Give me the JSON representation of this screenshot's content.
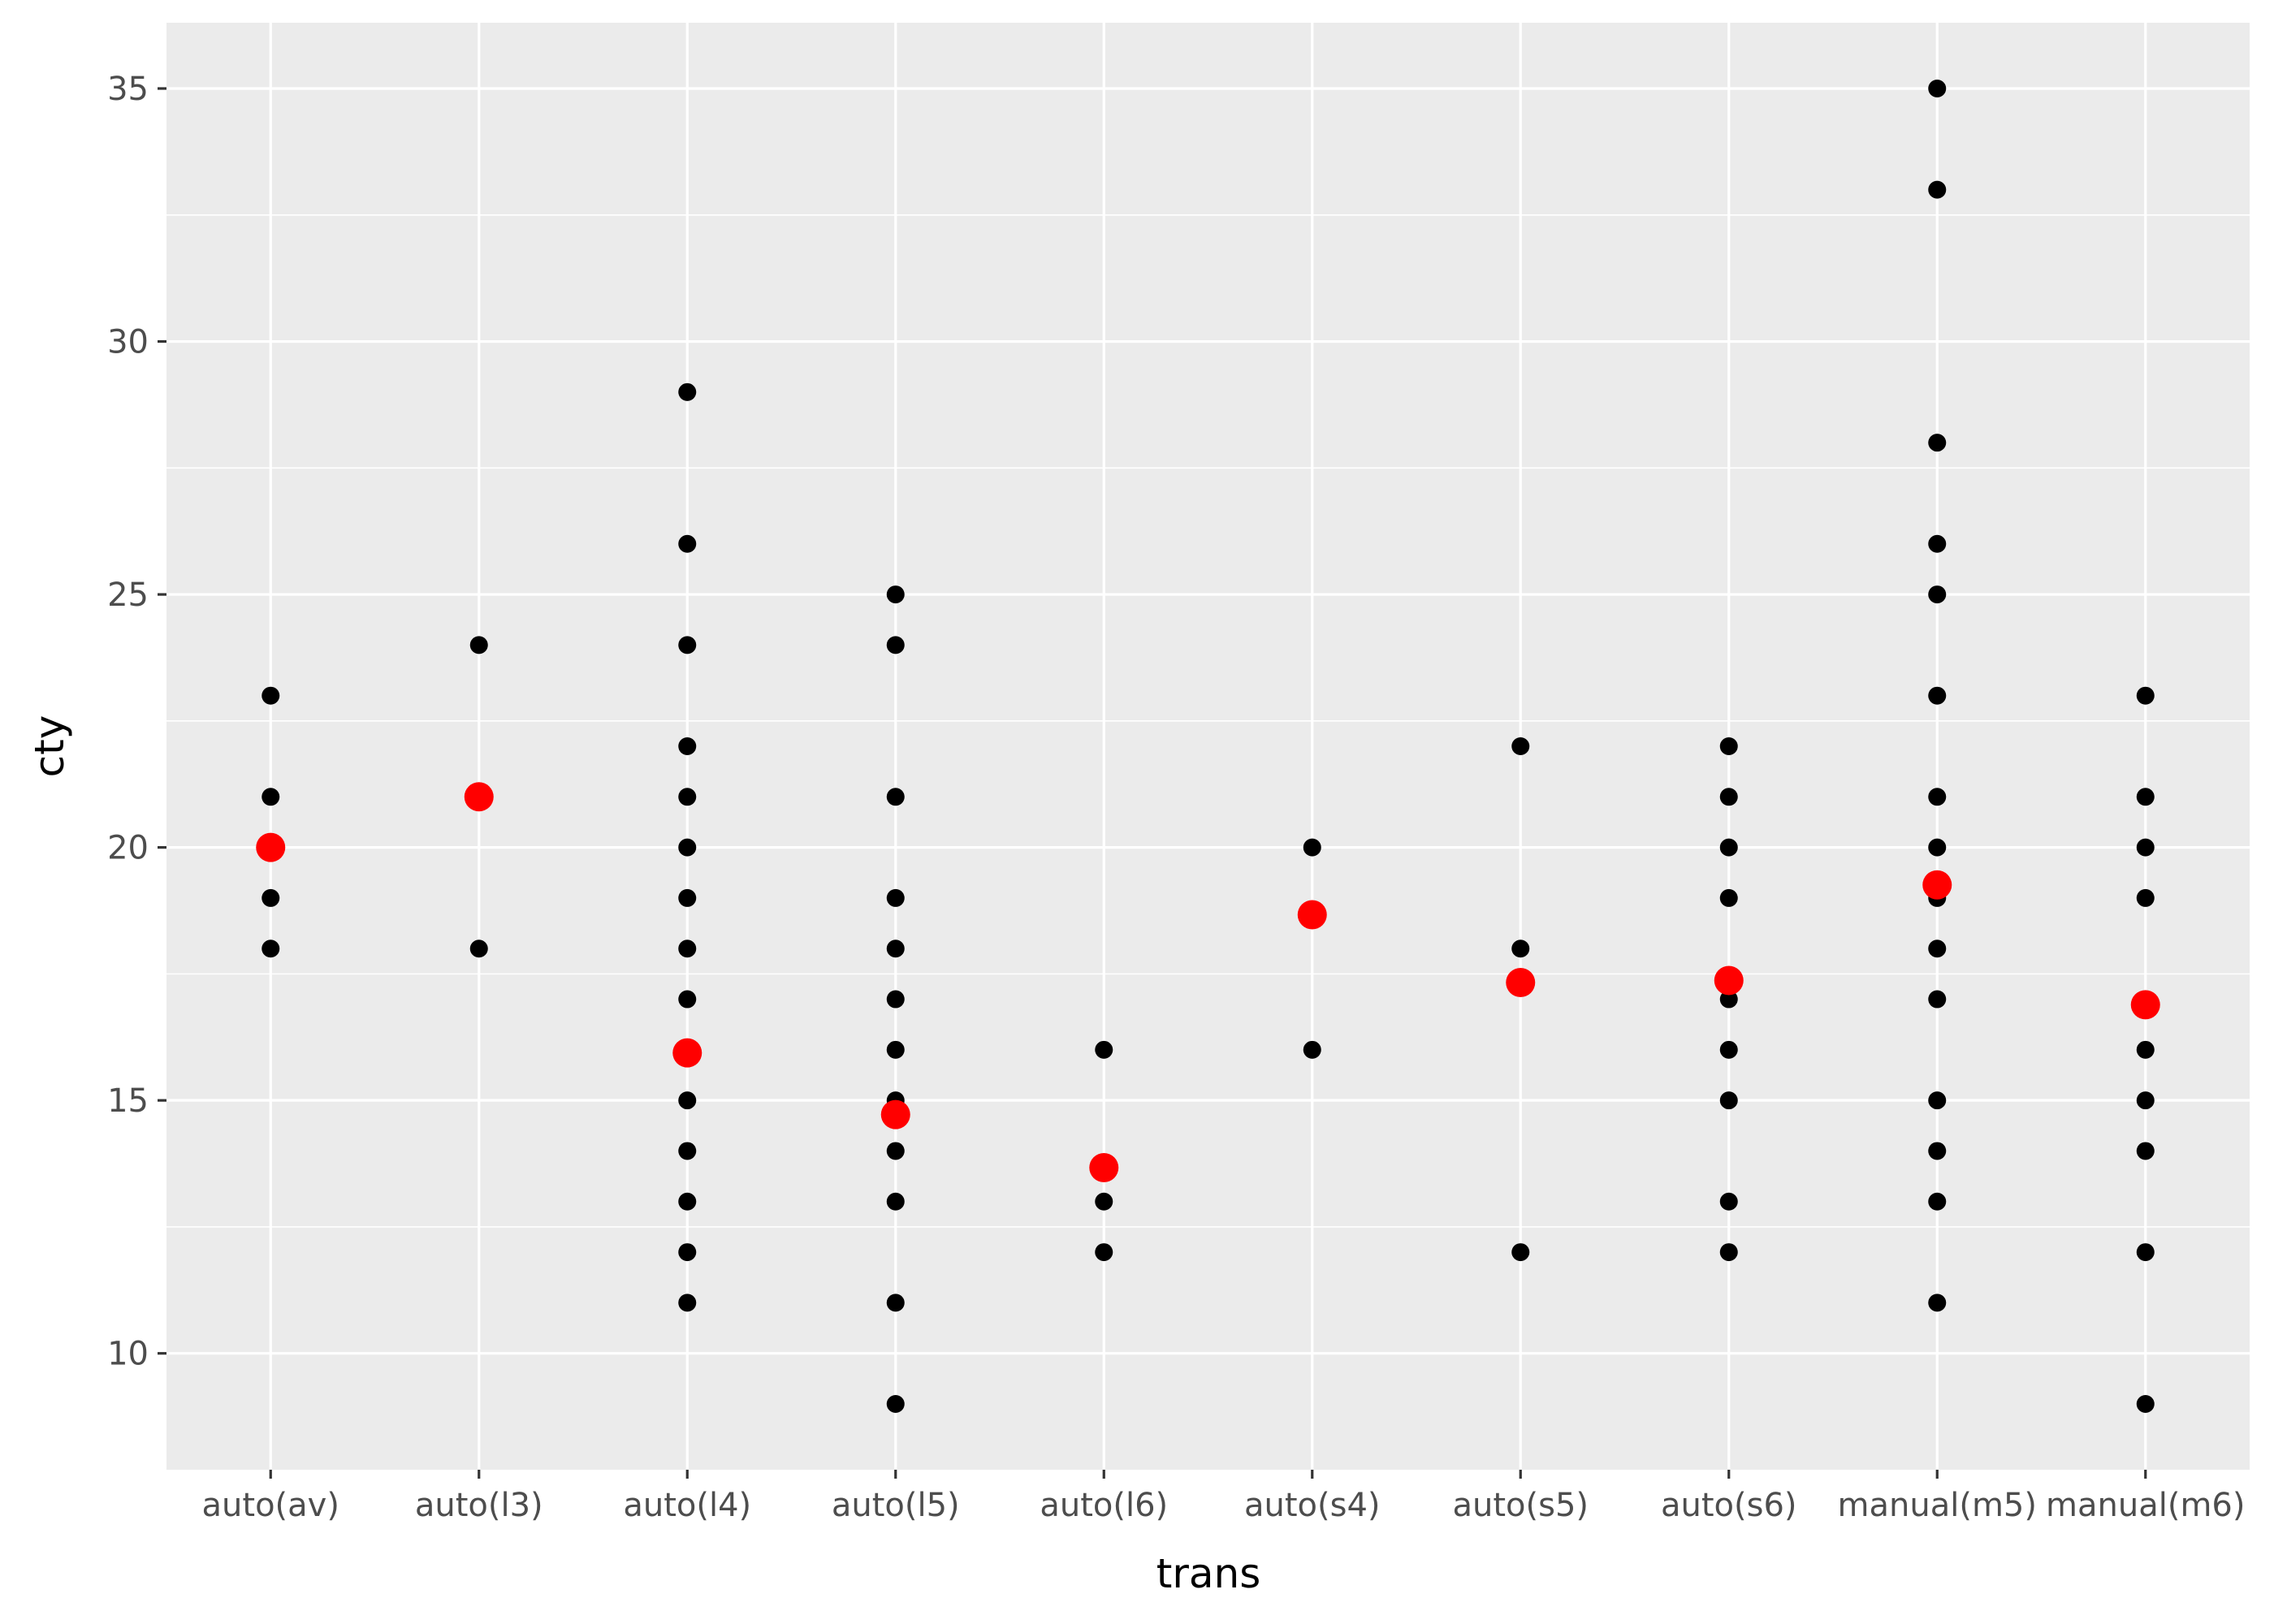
{
  "chart_data": {
    "type": "scatter",
    "title": "",
    "xlabel": "trans",
    "ylabel": "cty",
    "categories": [
      "auto(av)",
      "auto(l3)",
      "auto(l4)",
      "auto(l5)",
      "auto(l6)",
      "auto(s4)",
      "auto(s5)",
      "auto(s6)",
      "manual(m5)",
      "manual(m6)"
    ],
    "ylim": [
      7.7,
      36.3
    ],
    "y_ticks": [
      10,
      15,
      20,
      25,
      30,
      35
    ],
    "grid": true,
    "legend": "none",
    "series": [
      {
        "role": "observations",
        "color": "#000000",
        "values": [
          [
            23,
            21,
            19,
            18
          ],
          [
            24,
            18
          ],
          [
            29,
            26,
            24,
            22,
            21,
            20,
            19,
            18,
            17,
            15,
            14,
            13,
            12,
            11
          ],
          [
            25,
            24,
            21,
            19,
            18,
            17,
            16,
            15,
            14,
            13,
            11,
            9
          ],
          [
            16,
            13,
            12
          ],
          [
            20,
            16
          ],
          [
            22,
            18,
            12
          ],
          [
            22,
            21,
            20,
            19,
            17,
            16,
            15,
            13,
            12
          ],
          [
            35,
            33,
            28,
            26,
            25,
            23,
            21,
            20,
            19,
            18,
            17,
            15,
            14,
            13,
            11
          ],
          [
            23,
            21,
            20,
            19,
            16,
            15,
            14,
            12,
            9
          ]
        ]
      },
      {
        "role": "mean",
        "color": "#ff0000",
        "values": [
          20.0,
          21.0,
          15.94,
          14.72,
          13.67,
          18.67,
          17.33,
          17.37,
          19.26,
          16.89
        ]
      }
    ]
  }
}
